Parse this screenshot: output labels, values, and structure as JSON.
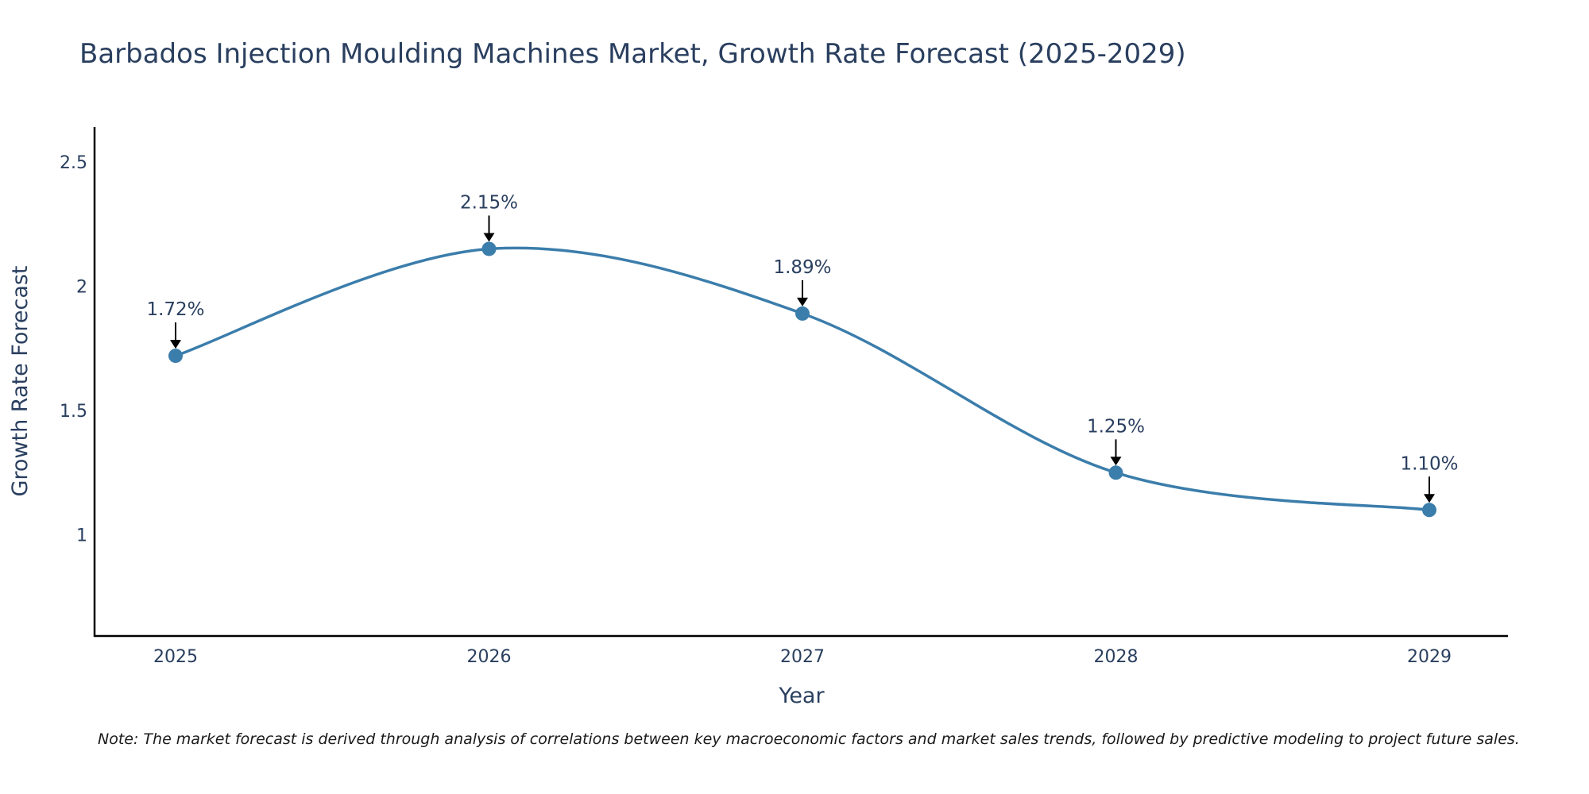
{
  "chart_data": {
    "type": "line",
    "title": "Barbados Injection Moulding Machines Market, Growth Rate Forecast (2025-2029)",
    "xlabel": "Year",
    "ylabel": "Growth Rate Forecast",
    "categories": [
      "2025",
      "2026",
      "2027",
      "2028",
      "2029"
    ],
    "values": [
      1.72,
      2.15,
      1.89,
      1.25,
      1.1
    ],
    "annotations": [
      "1.72%",
      "2.15%",
      "1.89%",
      "1.25%",
      "1.10%"
    ],
    "yticks": [
      1,
      1.5,
      2,
      2.5
    ],
    "ytick_labels": [
      "1",
      "1.5",
      "2",
      "2.5"
    ],
    "ylim": [
      0.59,
      2.64
    ],
    "grid": false,
    "line_shape": "spline",
    "line_color": "#3b7dab",
    "marker_color": "#3b7dab",
    "note": "Note: The market forecast is derived through analysis of correlations between key macroeconomic factors and market sales trends, followed by predictive modeling to project future sales."
  }
}
